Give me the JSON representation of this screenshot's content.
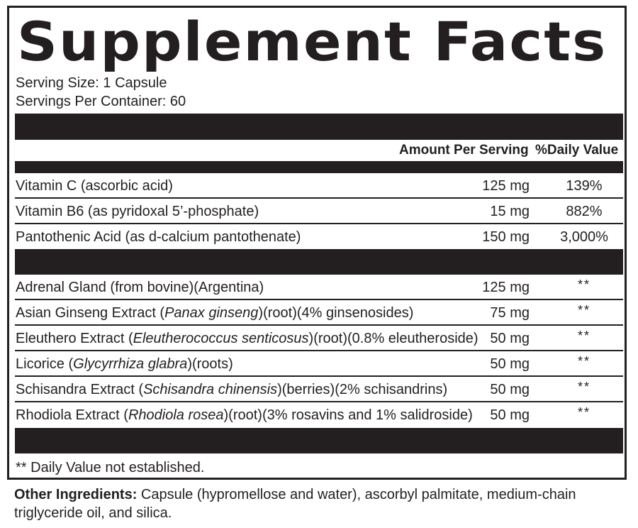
{
  "title": "Supplement Facts",
  "serving_size": "Serving Size: 1 Capsule",
  "servings_per_container": "Servings Per Container: 60",
  "columns": {
    "amount": "Amount Per Serving",
    "daily_value": "%Daily Value"
  },
  "vitamins": [
    {
      "name": "Vitamin C (ascorbic acid)",
      "amount": "125 mg",
      "dv": "139%"
    },
    {
      "name": "Vitamin B6 (as pyridoxal 5’-phosphate)",
      "amount": "15 mg",
      "dv": "882%"
    },
    {
      "name": "Pantothenic Acid (as d-calcium pantothenate)",
      "amount": "150 mg",
      "dv": "3,000%"
    }
  ],
  "blend": [
    {
      "name_pre": "Adrenal Gland (from bovine)(Argentina)",
      "name_italic": "",
      "name_post": "",
      "amount": "125 mg",
      "dv": "**"
    },
    {
      "name_pre": "Asian Ginseng Extract (",
      "name_italic": "Panax ginseng",
      "name_post": ")(root)(4% ginsenosides)",
      "amount": "75 mg",
      "dv": "**"
    },
    {
      "name_pre": "Eleuthero Extract (",
      "name_italic": "Eleutherococcus senticosus",
      "name_post": ")(root)(0.8% eleutheroside)",
      "amount": "50 mg",
      "dv": "**"
    },
    {
      "name_pre": "Licorice (",
      "name_italic": "Glycyrrhiza glabra",
      "name_post": ")(roots)",
      "amount": "50 mg",
      "dv": "**"
    },
    {
      "name_pre": "Schisandra Extract (",
      "name_italic": "Schisandra chinensis",
      "name_post": ")(berries)(2% schisandrins)",
      "amount": "50 mg",
      "dv": "**"
    },
    {
      "name_pre": "Rhodiola Extract (",
      "name_italic": "Rhodiola rosea",
      "name_post": ")(root)(3% rosavins and 1% salidroside)",
      "amount": "50 mg",
      "dv": "**"
    }
  ],
  "footnote": "** Daily Value not established.",
  "other_ingredients": {
    "label": "Other Ingredients:",
    "text": " Capsule (hypromellose and water), ascorbyl palmitate, medium-chain triglyceride oil, and silica."
  }
}
